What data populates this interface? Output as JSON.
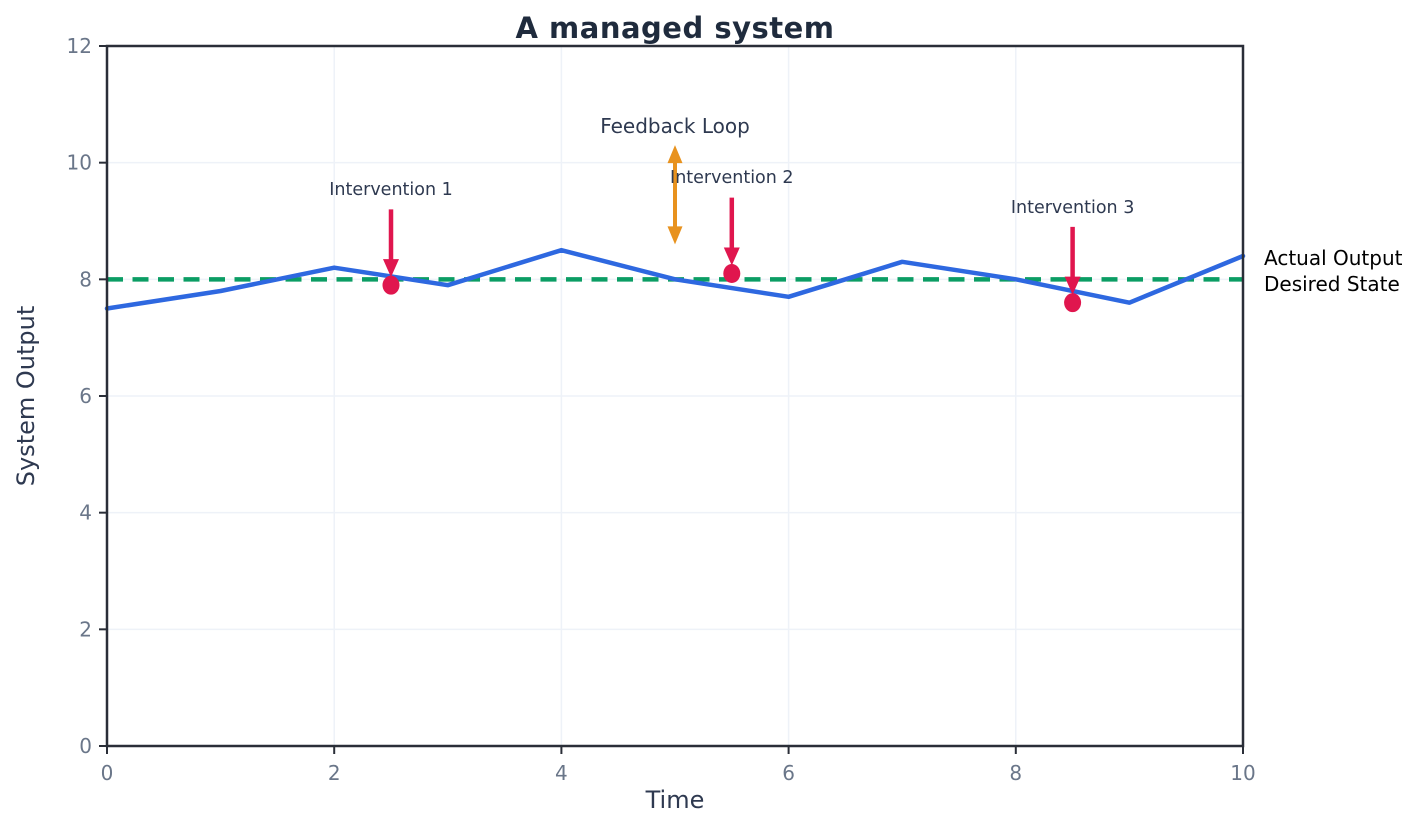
{
  "colors": {
    "actual_line": "#2e68e0",
    "desired_line": "#0b9d64",
    "intervention": "#e0164e",
    "feedback_arrow": "#e8921e",
    "title_text": "#1f2b3d",
    "axis_label_text": "#2e3950",
    "annotation_text": "#2e3950",
    "tick_text": "#6a7689",
    "spine": "#2a2e38",
    "grid": "#eef2f8",
    "background": "#ffffff"
  },
  "chart_data": {
    "type": "line",
    "title": "A managed system",
    "xlabel": "Time",
    "ylabel": "System Output",
    "xlim": [
      0,
      10
    ],
    "ylim": [
      0,
      12
    ],
    "x_ticks": [
      0,
      2,
      4,
      6,
      8,
      10
    ],
    "y_ticks": [
      0,
      2,
      4,
      6,
      8,
      10,
      12
    ],
    "grid": true,
    "legend_position": "right-outside",
    "series": [
      {
        "name": "Actual Output",
        "style": "solid",
        "color": "#2e68e0",
        "x": [
          0,
          1,
          2,
          3,
          4,
          5,
          6,
          7,
          8,
          9,
          10
        ],
        "y": [
          7.5,
          7.8,
          8.2,
          7.9,
          8.5,
          8.0,
          7.7,
          8.3,
          8.0,
          7.6,
          8.4
        ]
      },
      {
        "name": "Desired State",
        "style": "dashed",
        "color": "#0b9d64",
        "y_const": 8
      }
    ],
    "interventions": [
      {
        "label": "Intervention 1",
        "x": 2.5,
        "y": 7.9
      },
      {
        "label": "Intervention 2",
        "x": 5.5,
        "y": 8.1
      },
      {
        "label": "Intervention 3",
        "x": 8.5,
        "y": 7.6
      }
    ],
    "feedback_loop": {
      "label": "Feedback Loop",
      "x": 5,
      "y_from": 8.6,
      "y_to": 10.3
    }
  }
}
